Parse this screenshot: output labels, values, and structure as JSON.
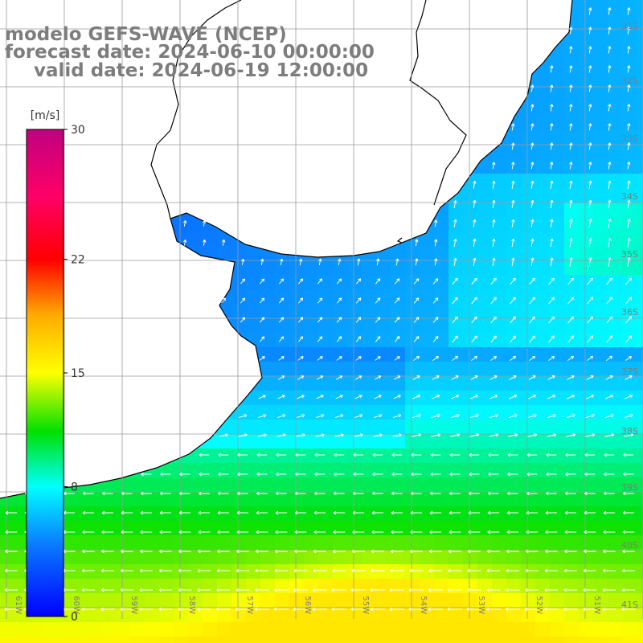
{
  "header": {
    "model_line": "modelo GEFS-WAVE (NCEP)",
    "forecast_line": "forecast date: 2024-06-10 00:00:00",
    "valid_line": "valid date: 2024-06-19 12:00:00"
  },
  "colorbar": {
    "unit": "[m/s]",
    "ticks": [
      {
        "label": "30",
        "value": 30
      },
      {
        "label": "22",
        "value": 22
      },
      {
        "label": "15",
        "value": 15
      },
      {
        "label": "8",
        "value": 8
      },
      {
        "label": "0",
        "value": 0
      }
    ]
  },
  "map": {
    "lon_labels": [
      "61W",
      "60W",
      "59W",
      "58W",
      "57W",
      "56W",
      "55W",
      "54W",
      "53W",
      "52W",
      "51W"
    ],
    "lat_labels": [
      "31S",
      "32S",
      "33S",
      "34S",
      "35S",
      "36S",
      "37S",
      "38S",
      "39S",
      "40S",
      "41S"
    ],
    "wind_speed_range": [
      0,
      30
    ],
    "colors": {
      "weak": "#0b2fe6",
      "moderate": "#1f90f5",
      "cyan": "#12d6f0",
      "green": "#1fcf36",
      "strong": "#f2e000",
      "land": "#ffffff",
      "grid": "#9a9a9a",
      "coast": "#000000",
      "arrow": "#ffffff",
      "label": "#7d7d7d"
    }
  }
}
